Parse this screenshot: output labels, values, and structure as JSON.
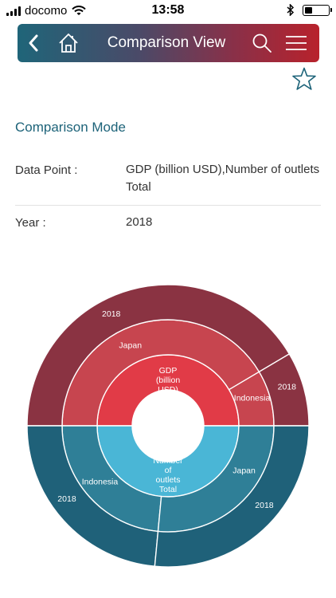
{
  "status_bar": {
    "carrier": "docomo",
    "time": "13:58"
  },
  "header": {
    "title": "Comparison View"
  },
  "icons": {
    "back": "chevron-left-icon",
    "home": "home-icon",
    "search": "search-icon",
    "menu": "hamburger-menu-icon",
    "favorite": "star-outline-icon"
  },
  "colors": {
    "brand_teal": "#1d6379",
    "brand_red": "#b8222c"
  },
  "comparison": {
    "mode_title": "Comparison Mode",
    "data_point_label": "Data Point :",
    "data_point_value": "GDP (billion USD),Number of outlets Total",
    "year_label": "Year :",
    "year_value": "2018"
  },
  "chart_data": {
    "type": "sunburst",
    "half_top": {
      "root_lines": [
        "GDP",
        "(billion",
        "USD)"
      ],
      "children": [
        {
          "label": "Japan",
          "share": 0.83,
          "year_label": "2018"
        },
        {
          "label": "Indonesia",
          "share": 0.17,
          "year_label": "2018"
        }
      ],
      "colors": {
        "inner": "#e13b47",
        "middle": "#c7454f",
        "outer": "#8a3342"
      }
    },
    "half_bottom": {
      "root_lines": [
        "Number",
        "of",
        "outlets",
        "Total"
      ],
      "children": [
        {
          "label": "Indonesia",
          "share": 0.47,
          "year_label": "2018"
        },
        {
          "label": "Japan",
          "share": 0.53,
          "year_label": "2018"
        }
      ],
      "colors": {
        "inner": "#4ab6d6",
        "middle": "#2f7f97",
        "outer": "#1f6179"
      }
    }
  }
}
